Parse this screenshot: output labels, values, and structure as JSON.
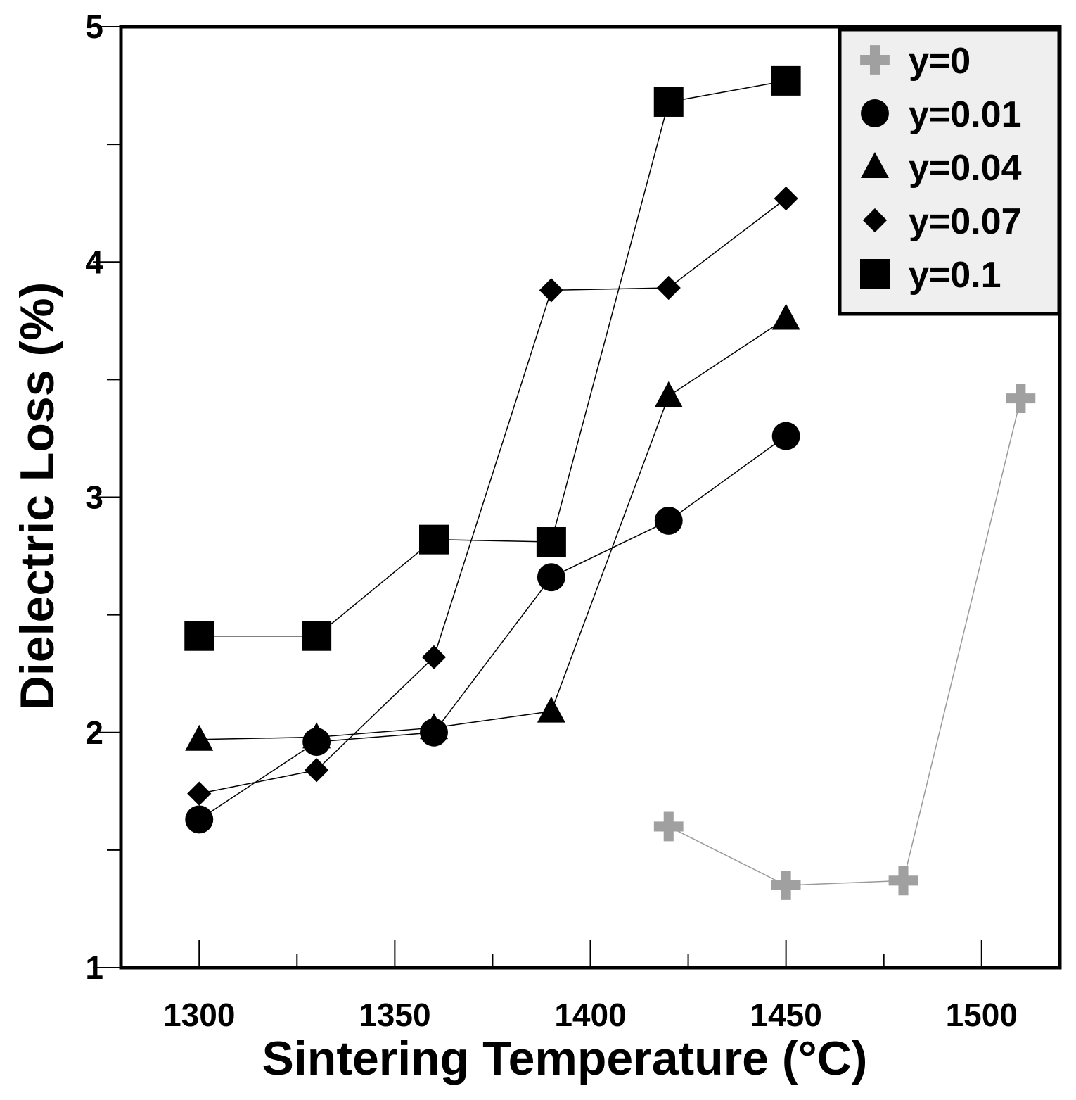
{
  "chart_data": {
    "type": "line",
    "title": "",
    "xlabel": "Sintering Temperature (°C)",
    "ylabel": "Dielectric Loss (%)",
    "xlim": [
      1280,
      1520
    ],
    "ylim": [
      1,
      5
    ],
    "x_ticks": [
      1300,
      1350,
      1400,
      1450,
      1500
    ],
    "x_minor_ticks": [
      1325,
      1375,
      1425,
      1475
    ],
    "y_ticks": [
      1,
      2,
      3,
      4,
      5
    ],
    "y_minor_ticks": [
      1.5,
      2.5,
      3.5,
      4.5
    ],
    "grid": false,
    "legend_position": "top-right",
    "series": [
      {
        "name": "y=0",
        "marker": "plus",
        "color": "#a0a0a0",
        "x": [
          1420,
          1450,
          1480,
          1510
        ],
        "y": [
          1.6,
          1.35,
          1.37,
          3.42
        ]
      },
      {
        "name": "y=0.01",
        "marker": "circle",
        "color": "#000000",
        "x": [
          1300,
          1330,
          1360,
          1390,
          1420,
          1450
        ],
        "y": [
          1.63,
          1.96,
          2.0,
          2.66,
          2.9,
          3.26
        ]
      },
      {
        "name": "y=0.04",
        "marker": "triangle",
        "color": "#000000",
        "x": [
          1300,
          1330,
          1360,
          1390,
          1420,
          1450
        ],
        "y": [
          1.97,
          1.98,
          2.02,
          2.09,
          3.43,
          3.76
        ]
      },
      {
        "name": "y=0.07",
        "marker": "diamond",
        "color": "#000000",
        "x": [
          1300,
          1330,
          1360,
          1390,
          1420,
          1450
        ],
        "y": [
          1.74,
          1.84,
          2.32,
          3.88,
          3.89,
          4.27
        ]
      },
      {
        "name": "y=0.1",
        "marker": "square",
        "color": "#000000",
        "x": [
          1300,
          1330,
          1360,
          1390,
          1420,
          1450
        ],
        "y": [
          2.41,
          2.41,
          2.82,
          2.81,
          4.68,
          4.77
        ]
      }
    ]
  }
}
